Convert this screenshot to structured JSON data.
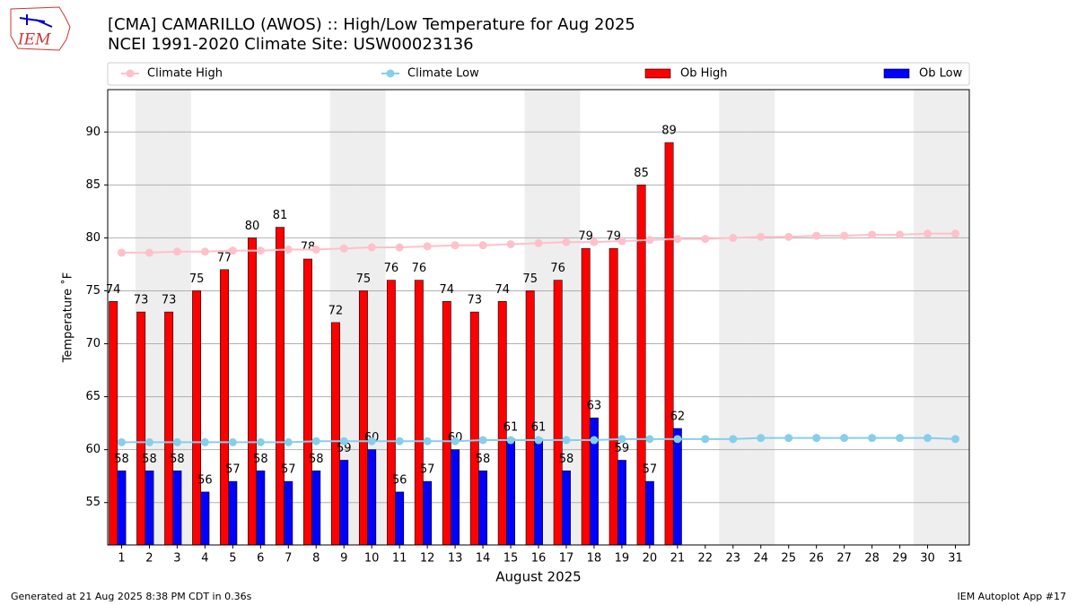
{
  "chart_data": {
    "type": "bar",
    "title": "[CMA] CAMARILLO (AWOS) :: High/Low Temperature for Aug 2025",
    "subtitle": "NCEI 1991-2020 Climate Site: USW00023136",
    "x_label": "August 2025",
    "y_label": "Temperature ˚F",
    "logo": "IEM",
    "footer_left": "Generated at 21 Aug 2025 8:38 PM CDT in 0.36s",
    "footer_right": "IEM Autoplot App #17",
    "x": [
      1,
      2,
      3,
      4,
      5,
      6,
      7,
      8,
      9,
      10,
      11,
      12,
      13,
      14,
      15,
      16,
      17,
      18,
      19,
      20,
      21,
      22,
      23,
      24,
      25,
      26,
      27,
      28,
      29,
      30,
      31
    ],
    "xlim": [
      0.5,
      31.5
    ],
    "xticks": [
      1,
      2,
      3,
      4,
      5,
      6,
      7,
      8,
      9,
      10,
      11,
      12,
      13,
      14,
      15,
      16,
      17,
      18,
      19,
      20,
      21,
      22,
      23,
      24,
      25,
      26,
      27,
      28,
      29,
      30,
      31
    ],
    "ylim": [
      51,
      94
    ],
    "yticks": [
      55,
      60,
      65,
      70,
      75,
      80,
      85,
      90
    ],
    "grid": true,
    "weekend_shading": [
      2,
      3,
      9,
      10,
      16,
      17,
      23,
      24,
      30,
      31
    ],
    "series": [
      {
        "name": "Climate High",
        "kind": "line",
        "color": "#ffc0cb",
        "values": [
          78.6,
          78.6,
          78.7,
          78.7,
          78.8,
          78.8,
          78.9,
          78.9,
          79.0,
          79.1,
          79.1,
          79.2,
          79.3,
          79.3,
          79.4,
          79.5,
          79.6,
          79.6,
          79.7,
          79.8,
          79.9,
          79.9,
          80.0,
          80.1,
          80.1,
          80.2,
          80.2,
          80.3,
          80.3,
          80.4,
          80.4
        ]
      },
      {
        "name": "Climate Low",
        "kind": "line",
        "color": "#87ceeb",
        "values": [
          60.7,
          60.7,
          60.7,
          60.7,
          60.7,
          60.7,
          60.7,
          60.8,
          60.8,
          60.8,
          60.8,
          60.8,
          60.8,
          60.9,
          60.9,
          60.9,
          60.9,
          60.9,
          61.0,
          61.0,
          61.0,
          61.0,
          61.0,
          61.1,
          61.1,
          61.1,
          61.1,
          61.1,
          61.1,
          61.1,
          61.0
        ]
      },
      {
        "name": "Ob High",
        "kind": "bar",
        "color": "#ff0000",
        "values": [
          74,
          73,
          73,
          75,
          77,
          80,
          81,
          78,
          72,
          75,
          76,
          76,
          74,
          73,
          74,
          75,
          76,
          79,
          79,
          85,
          89,
          null,
          null,
          null,
          null,
          null,
          null,
          null,
          null,
          null,
          null
        ]
      },
      {
        "name": "Ob Low",
        "kind": "bar",
        "color": "#0000ff",
        "values": [
          58,
          58,
          58,
          56,
          57,
          58,
          57,
          58,
          59,
          60,
          56,
          57,
          60,
          58,
          61,
          61,
          58,
          63,
          59,
          57,
          62,
          null,
          null,
          null,
          null,
          null,
          null,
          null,
          null,
          null,
          null
        ]
      }
    ]
  }
}
